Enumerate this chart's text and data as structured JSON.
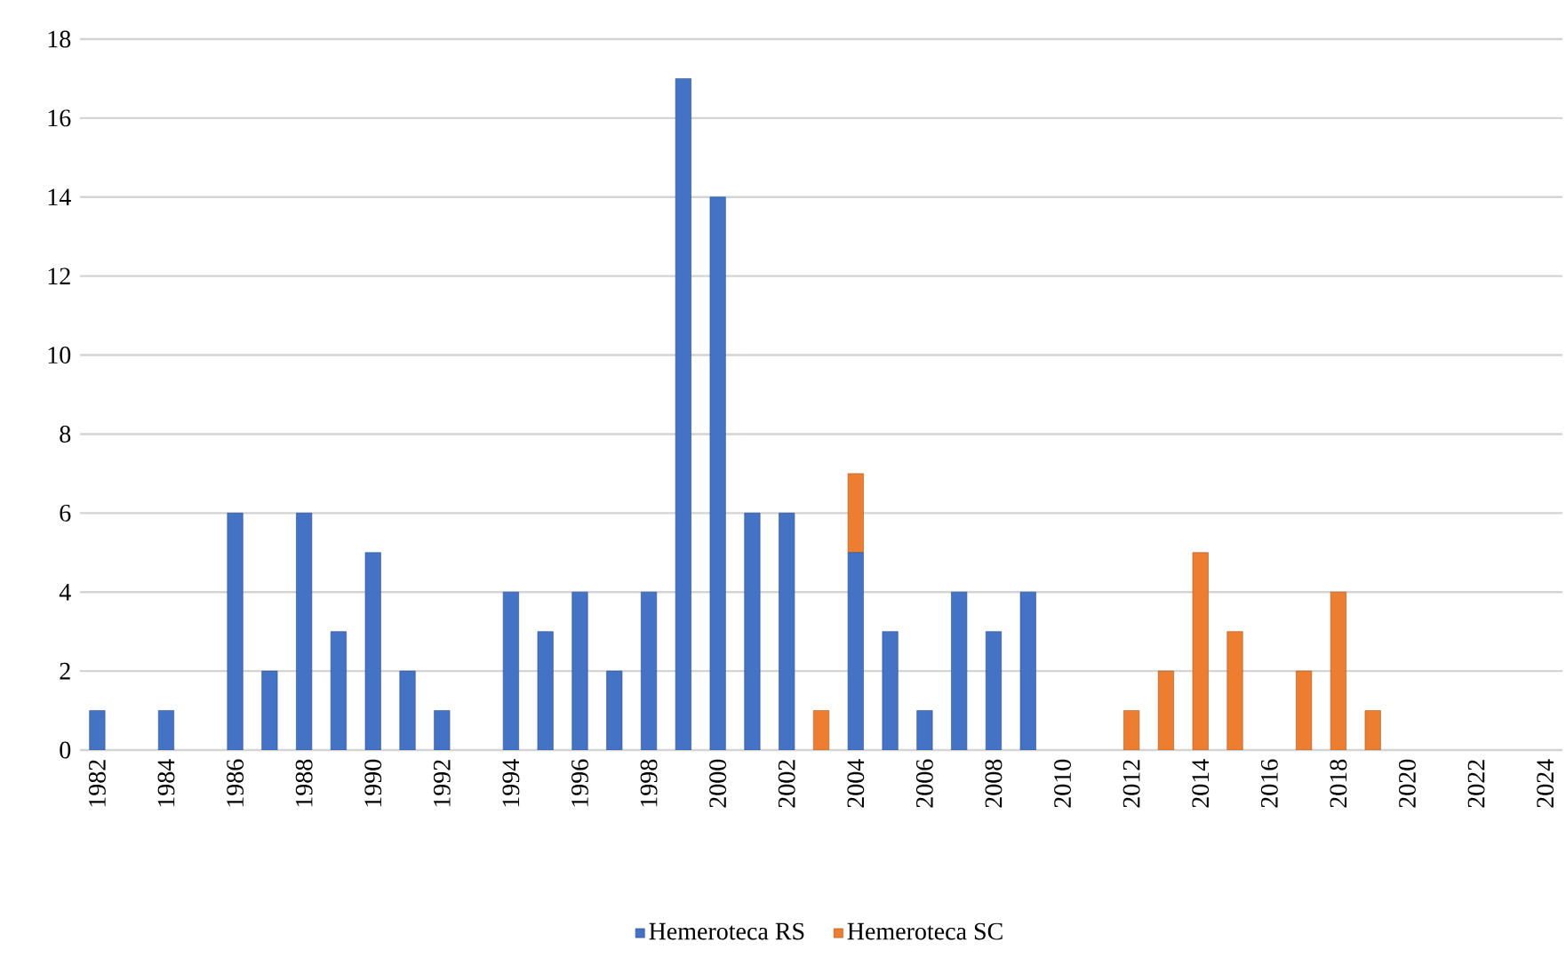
{
  "chart_data": {
    "type": "bar",
    "stacked": true,
    "grid": "y",
    "legend": "bottom",
    "categories": [
      "1982",
      null,
      "1984",
      null,
      "1986",
      null,
      "1988",
      null,
      "1990",
      null,
      "1992",
      null,
      "1994",
      null,
      "1996",
      null,
      "1998",
      null,
      "2000",
      null,
      "2002",
      null,
      "2004",
      null,
      "2006",
      null,
      "2008",
      null,
      "2010",
      null,
      "2012",
      null,
      "2014",
      null,
      "2016",
      null,
      "2018",
      null,
      "2020",
      null,
      "2022",
      null,
      "2024"
    ],
    "ylim": [
      0,
      18
    ],
    "yticks": [
      0,
      2,
      4,
      6,
      8,
      10,
      12,
      14,
      16,
      18
    ],
    "series": [
      {
        "name": "Hemeroteca RS",
        "color": "#4472c4",
        "values": [
          1,
          0,
          1,
          0,
          6,
          2,
          6,
          3,
          5,
          2,
          1,
          0,
          4,
          3,
          4,
          2,
          4,
          17,
          14,
          6,
          6,
          0,
          5,
          3,
          1,
          4,
          3,
          4,
          0,
          0,
          0,
          0,
          0,
          0,
          0,
          0,
          0,
          0,
          0,
          0,
          0,
          0,
          0
        ]
      },
      {
        "name": "Hemeroteca SC",
        "color": "#ed7d31",
        "values": [
          0,
          0,
          0,
          0,
          0,
          0,
          0,
          0,
          0,
          0,
          0,
          0,
          0,
          0,
          0,
          0,
          0,
          0,
          0,
          0,
          0,
          1,
          2,
          0,
          0,
          0,
          0,
          0,
          0,
          0,
          1,
          2,
          5,
          3,
          0,
          2,
          4,
          1,
          0,
          0,
          0,
          0,
          0
        ]
      }
    ]
  }
}
